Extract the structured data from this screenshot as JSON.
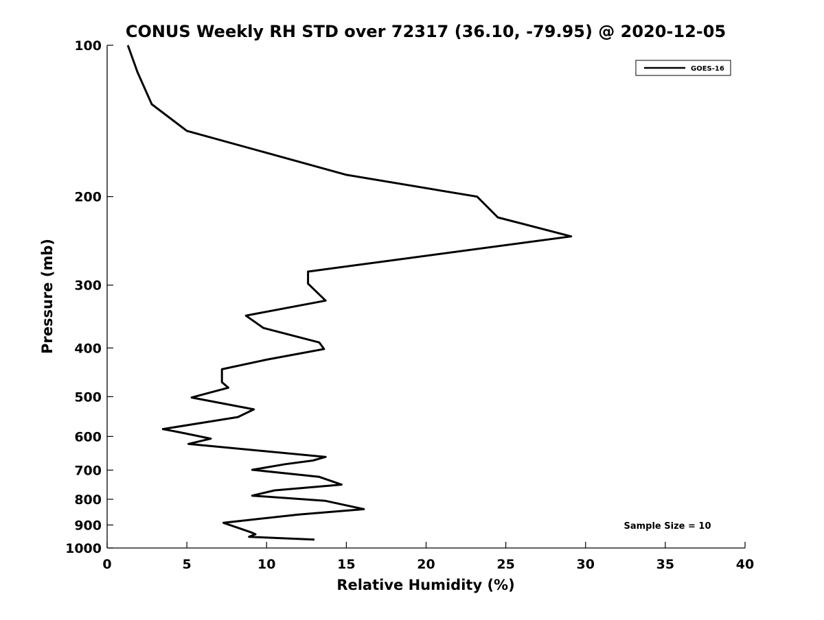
{
  "chart_data": {
    "type": "line",
    "title": "CONUS Weekly RH STD over 72317 (36.10, -79.95) @ 2020-12-05",
    "xlabel": "Relative Humidity (%)",
    "ylabel": "Pressure (mb)",
    "xlim": [
      0,
      40
    ],
    "ylim": [
      100,
      1000
    ],
    "yscale": "log",
    "y_reversed": true,
    "x_ticks": [
      "0",
      "5",
      "10",
      "15",
      "20",
      "25",
      "30",
      "35",
      "40"
    ],
    "y_ticks": [
      "100",
      "200",
      "300",
      "400",
      "500",
      "600",
      "700",
      "800",
      "900",
      "1000"
    ],
    "grid": false,
    "legend_position": "top-right",
    "annotation": "Sample Size = 10",
    "series": [
      {
        "name": "GOES-16",
        "color": "#000000",
        "x": [
          1.3,
          1.9,
          2.8,
          5.0,
          15.0,
          23.2,
          24.5,
          29.1,
          12.6,
          12.6,
          13.7,
          8.7,
          9.8,
          13.3,
          13.6,
          10.0,
          7.2,
          7.2,
          7.6,
          5.3,
          9.2,
          8.2,
          3.5,
          4.7,
          6.5,
          5.1,
          13.7,
          12.9,
          11.2,
          9.1,
          13.3,
          14.7,
          10.5,
          9.1,
          13.7,
          16.1,
          12.0,
          7.3,
          9.0,
          9.3,
          8.9,
          13.0
        ],
        "y": [
          100,
          113,
          131,
          148,
          181,
          200,
          220,
          240,
          282,
          298,
          322,
          345,
          365,
          390,
          402,
          422,
          441,
          468,
          480,
          502,
          530,
          549,
          580,
          590,
          606,
          621,
          659,
          670,
          681,
          699,
          722,
          748,
          768,
          787,
          806,
          837,
          858,
          891,
          930,
          939,
          950,
          962
        ]
      }
    ]
  }
}
